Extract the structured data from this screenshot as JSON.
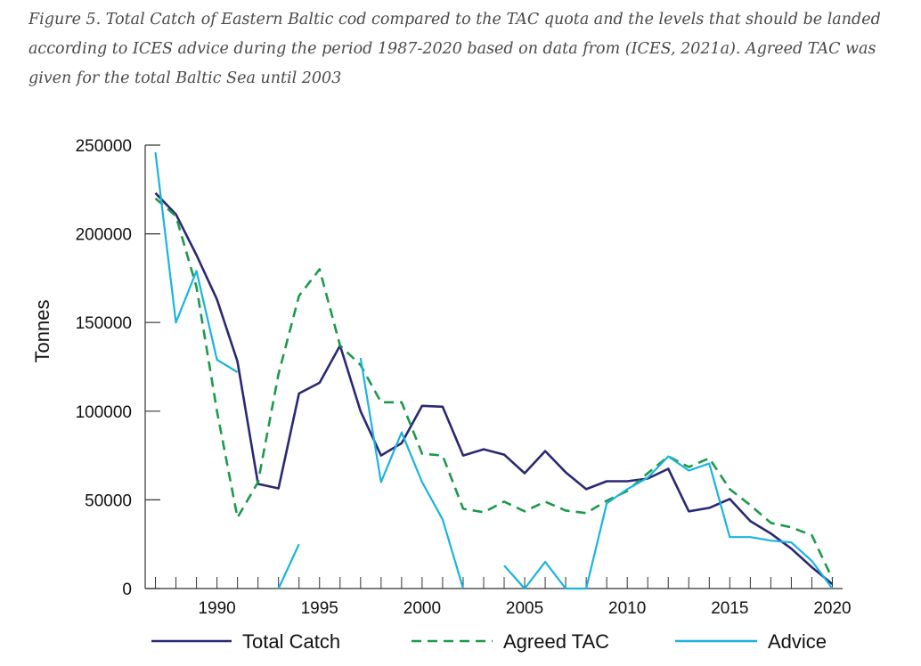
{
  "caption": "Figure 5. Total Catch of Eastern Baltic cod compared to the TAC quota and the levels that should be landed according to ICES advice during the period 1987-2020 based on data from (ICES, 2021a). Agreed TAC was given for the total Baltic Sea until 2003",
  "colors": {
    "total_catch": "#2a2873",
    "agreed_tac": "#1a9a4a",
    "advice": "#1ab3e0",
    "axis": "#333333"
  },
  "chart_data": {
    "type": "line",
    "title": "",
    "xlabel": "",
    "ylabel": "Tonnes",
    "xlim": [
      1986.5,
      2020.5
    ],
    "ylim": [
      0,
      250000
    ],
    "x_ticks": [
      1990,
      1995,
      2000,
      2005,
      2010,
      2015,
      2020
    ],
    "y_ticks": [
      0,
      50000,
      100000,
      150000,
      200000,
      250000
    ],
    "legend_position": "bottom",
    "series": [
      {
        "name": "Total Catch",
        "style": "solid",
        "points": [
          [
            1987,
            223000
          ],
          [
            1988,
            211000
          ],
          [
            1989,
            188000
          ],
          [
            1990,
            163000
          ],
          [
            1991,
            128000
          ],
          [
            1992,
            59000
          ],
          [
            1993,
            56500
          ],
          [
            1994,
            110000
          ],
          [
            1995,
            116000
          ],
          [
            1996,
            137000
          ],
          [
            1997,
            100000
          ],
          [
            1998,
            75000
          ],
          [
            1999,
            82000
          ],
          [
            2000,
            103000
          ],
          [
            2001,
            102500
          ],
          [
            2002,
            75000
          ],
          [
            2003,
            78500
          ],
          [
            2004,
            75500
          ],
          [
            2005,
            65000
          ],
          [
            2006,
            77500
          ],
          [
            2007,
            65500
          ],
          [
            2008,
            56000
          ],
          [
            2009,
            60500
          ],
          [
            2010,
            60500
          ],
          [
            2011,
            62000
          ],
          [
            2012,
            67500
          ],
          [
            2013,
            43500
          ],
          [
            2014,
            45500
          ],
          [
            2015,
            50500
          ],
          [
            2016,
            38000
          ],
          [
            2017,
            31000
          ],
          [
            2018,
            22500
          ],
          [
            2019,
            12000
          ],
          [
            2020,
            2500
          ]
        ]
      },
      {
        "name": "Agreed TAC",
        "style": "dashed",
        "points": [
          [
            1987,
            220000
          ],
          [
            1988,
            210000
          ],
          [
            1989,
            170000
          ],
          [
            1990,
            100000
          ],
          [
            1991,
            40000
          ],
          [
            1992,
            60000
          ],
          [
            1993,
            121000
          ],
          [
            1994,
            165000
          ],
          [
            1995,
            180000
          ],
          [
            1996,
            137000
          ],
          [
            1997,
            126000
          ],
          [
            1998,
            105000
          ],
          [
            1999,
            105000
          ],
          [
            2000,
            76000
          ],
          [
            2001,
            75000
          ],
          [
            2002,
            45000
          ],
          [
            2003,
            43000
          ],
          [
            2004,
            49000
          ],
          [
            2005,
            43500
          ],
          [
            2006,
            49000
          ],
          [
            2007,
            44000
          ],
          [
            2008,
            42500
          ],
          [
            2009,
            49500
          ],
          [
            2010,
            55000
          ],
          [
            2011,
            65000
          ],
          [
            2012,
            74500
          ],
          [
            2013,
            68500
          ],
          [
            2014,
            73500
          ],
          [
            2015,
            56000
          ],
          [
            2016,
            47000
          ],
          [
            2017,
            37000
          ],
          [
            2018,
            34500
          ],
          [
            2019,
            30000
          ],
          [
            2020,
            5500
          ]
        ]
      },
      {
        "name": "Advice",
        "style": "solid",
        "points": [
          [
            1987,
            246000
          ],
          [
            1988,
            150000
          ],
          [
            1989,
            179000
          ],
          [
            1990,
            129000
          ],
          [
            1991,
            122000
          ],
          null,
          [
            1993,
            0
          ],
          [
            1994,
            25000
          ],
          null,
          null,
          [
            1997,
            130000
          ],
          [
            1998,
            60000
          ],
          [
            1999,
            88000
          ],
          [
            2000,
            60000
          ],
          [
            2001,
            39000
          ],
          [
            2002,
            0
          ],
          null,
          [
            2004,
            13000
          ],
          [
            2005,
            0
          ],
          [
            2006,
            15000
          ],
          [
            2007,
            0
          ],
          [
            2008,
            0
          ],
          [
            2009,
            48000
          ],
          [
            2010,
            56000
          ],
          [
            2011,
            62500
          ],
          [
            2012,
            74500
          ],
          [
            2013,
            66500
          ],
          [
            2014,
            70500
          ],
          [
            2015,
            29000
          ],
          [
            2016,
            29000
          ],
          [
            2017,
            27000
          ],
          [
            2018,
            26000
          ],
          [
            2019,
            15500
          ],
          [
            2020,
            0
          ]
        ]
      }
    ]
  }
}
